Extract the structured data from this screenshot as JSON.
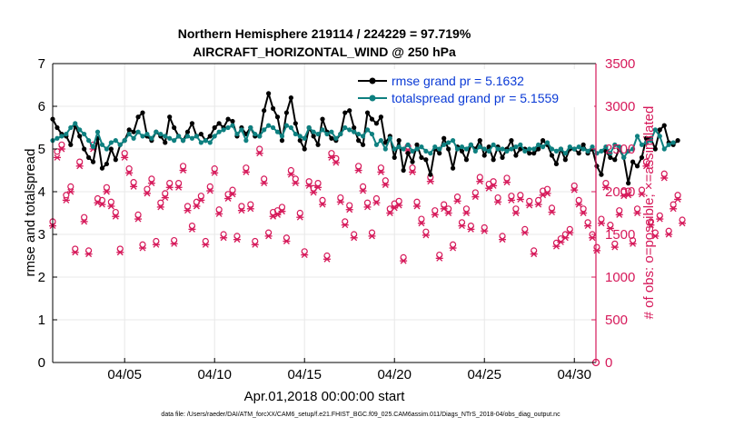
{
  "chart_data": {
    "type": "line",
    "title_line1": "Northern Hemisphere 219114 / 224229 = 97.719%",
    "title_line2": "AIRCRAFT_HORIZONTAL_WIND @ 250 hPa",
    "xlabel": "Apr.01,2018 00:00:00 start",
    "ylabel_left": "rmse and totalspread",
    "ylabel_right": "# of obs: o=possible; ×=assimilated",
    "xlim": [
      1.0,
      31.2
    ],
    "ylim_left": [
      0,
      7
    ],
    "ylim_right": [
      0,
      3500
    ],
    "x_tick_labels": [
      "04/05",
      "04/10",
      "04/15",
      "04/20",
      "04/25",
      "04/30"
    ],
    "x_tick_values": [
      5,
      10,
      15,
      20,
      25,
      30
    ],
    "y_left_ticks": [
      "0",
      "1",
      "2",
      "3",
      "4",
      "5",
      "6",
      "7"
    ],
    "y_right_ticks": [
      "0",
      "500",
      "1000",
      "1500",
      "2000",
      "2500",
      "3000",
      "3500"
    ],
    "colors": {
      "rmse": "#000000",
      "spread": "#0e8080",
      "obs": "#d6195a",
      "legend_text": "#0a3ad6",
      "grid": "#e8e8e8"
    },
    "series": [
      {
        "name": "rmse grand pr = 5.1632",
        "axis": "left",
        "values": [
          5.7,
          5.5,
          5.35,
          5.3,
          5.1,
          5.55,
          5.3,
          5.0,
          4.8,
          4.7,
          5.25,
          4.55,
          4.65,
          5.0,
          4.75,
          5.1,
          5.2,
          5.45,
          5.4,
          5.75,
          5.85,
          5.3,
          5.2,
          5.4,
          5.3,
          5.15,
          5.75,
          5.5,
          5.3,
          5.2,
          5.4,
          5.6,
          5.3,
          5.35,
          5.2,
          5.3,
          5.5,
          5.6,
          5.5,
          5.7,
          5.65,
          5.3,
          5.5,
          5.35,
          5.5,
          5.3,
          5.3,
          5.9,
          6.3,
          5.95,
          5.75,
          5.2,
          5.85,
          6.2,
          5.6,
          5.2,
          5.0,
          5.5,
          5.3,
          5.1,
          5.7,
          5.4,
          5.25,
          5.2,
          5.35,
          5.85,
          5.9,
          5.5,
          5.2,
          5.1,
          5.85,
          5.7,
          5.6,
          5.75,
          5.15,
          5.3,
          4.8,
          5.2,
          4.5,
          4.9,
          4.7,
          5.1,
          4.8,
          4.75,
          4.4,
          5.0,
          4.9,
          5.25,
          5.0,
          4.55,
          5.05,
          4.95,
          4.75,
          5.1,
          5.0,
          5.2,
          4.85,
          5.05,
          4.75,
          5.05,
          4.8,
          5.0,
          5.2,
          4.85,
          5.0,
          5.0,
          4.9,
          4.9,
          5.0,
          5.2,
          5.1,
          4.85,
          4.65,
          5.0,
          4.75,
          5.0,
          5.0,
          4.9,
          5.1,
          4.9,
          5.0,
          4.6,
          4.4,
          4.95,
          4.8,
          4.75,
          5.0,
          4.8,
          4.2,
          4.7,
          4.6,
          4.8,
          5.25,
          5.25,
          5.0,
          5.45,
          5.55,
          5.15,
          5.1,
          5.2
        ]
      },
      {
        "name": "totalspread grand pr = 5.1559",
        "axis": "left",
        "values": [
          5.2,
          5.25,
          5.3,
          5.35,
          5.5,
          5.6,
          5.45,
          5.35,
          5.2,
          5.05,
          5.4,
          5.1,
          5.0,
          5.15,
          5.2,
          5.1,
          5.2,
          5.35,
          5.25,
          5.4,
          5.3,
          5.35,
          5.25,
          5.4,
          5.35,
          5.3,
          5.25,
          5.2,
          5.3,
          5.2,
          5.3,
          5.25,
          5.3,
          5.15,
          5.2,
          5.15,
          5.3,
          5.4,
          5.45,
          5.5,
          5.55,
          5.35,
          5.45,
          5.2,
          5.5,
          5.35,
          5.3,
          5.45,
          5.55,
          5.5,
          5.4,
          5.3,
          5.55,
          5.5,
          5.35,
          5.3,
          5.25,
          5.5,
          5.4,
          5.35,
          5.45,
          5.35,
          5.4,
          5.25,
          5.35,
          5.5,
          5.45,
          5.4,
          5.35,
          5.3,
          5.45,
          5.35,
          5.1,
          5.2,
          5.0,
          5.25,
          5.0,
          5.05,
          5.0,
          5.1,
          4.95,
          5.0,
          5.05,
          4.95,
          4.9,
          5.05,
          5.0,
          5.1,
          5.15,
          5.2,
          5.0,
          5.05,
          5.0,
          5.1,
          4.95,
          5.05,
          5.0,
          4.95,
          5.1,
          5.0,
          5.0,
          4.95,
          5.0,
          5.05,
          5.1,
          4.95,
          5.0,
          5.0,
          5.1,
          5.05,
          5.15,
          5.0,
          4.95,
          5.0,
          4.9,
          5.05,
          5.0,
          5.05,
          5.0,
          4.95,
          5.05,
          4.9,
          4.95,
          5.05,
          4.9,
          5.1,
          5.05,
          4.8,
          4.95,
          5.0,
          5.3,
          5.1,
          5.15,
          5.2,
          5.45,
          5.3,
          5.0,
          5.1,
          5.15
        ]
      }
    ],
    "obs_possible": {
      "x_start": 1.0,
      "x_step": 0.25,
      "axis": "right",
      "marker": "o",
      "values": [
        1650,
        2470,
        2550,
        1960,
        2060,
        1330,
        2350,
        1700,
        1310,
        2550,
        1920,
        1900,
        2050,
        1880,
        1760,
        1330,
        2450,
        2270,
        2110,
        1730,
        1380,
        2030,
        2150,
        1420,
        1870,
        1980,
        2100,
        1430,
        2100,
        2300,
        1830,
        1600,
        1880,
        1950,
        1420,
        2060,
        2270,
        1790,
        1500,
        1970,
        2020,
        1480,
        1830,
        2280,
        1850,
        1420,
        2500,
        2150,
        1520,
        1760,
        1780,
        1820,
        1460,
        2250,
        2150,
        1750,
        1300,
        2120,
        2040,
        2100,
        1900,
        1250,
        2450,
        2390,
        1930,
        1650,
        1840,
        1500,
        2300,
        2060,
        1870,
        1520,
        1920,
        2280,
        2130,
        1800,
        1860,
        1890,
        1230,
        2530,
        2280,
        1880,
        1680,
        1530,
        2170,
        1780,
        1260,
        1850,
        1800,
        1380,
        1940,
        1640,
        1800,
        1600,
        1990,
        2170,
        1580,
        2090,
        2120,
        1930,
        1480,
        2160,
        1950,
        1800,
        1960,
        1560,
        1890,
        1310,
        1900,
        2010,
        2030,
        1810,
        1400,
        1450,
        1500,
        1560,
        2070,
        1900,
        1800,
        1640,
        1500,
        1350,
        1680,
        2100,
        1610,
        1390,
        1780,
        2000,
        2010,
        1430,
        1800,
        2020,
        2350,
        1650,
        1520,
        1720,
        2210,
        1540,
        1850,
        1960,
        1670
      ]
    },
    "obs_assimilated": {
      "x_start": 1.0,
      "x_step": 0.25,
      "axis": "right",
      "marker": "x",
      "values": [
        1600,
        2400,
        2500,
        1900,
        2000,
        1290,
        2300,
        1650,
        1270,
        2500,
        1870,
        1850,
        2000,
        1830,
        1710,
        1290,
        2400,
        2220,
        2060,
        1680,
        1340,
        1980,
        2100,
        1380,
        1820,
        1930,
        2050,
        1390,
        2050,
        2250,
        1780,
        1560,
        1830,
        1900,
        1380,
        2010,
        2220,
        1740,
        1460,
        1920,
        1970,
        1440,
        1780,
        2230,
        1800,
        1380,
        2450,
        2100,
        1480,
        1710,
        1730,
        1770,
        1420,
        2200,
        2100,
        1700,
        1260,
        2070,
        1990,
        2050,
        1850,
        1210,
        2400,
        2340,
        1880,
        1610,
        1790,
        1460,
        2250,
        2010,
        1820,
        1480,
        1870,
        2230,
        2080,
        1750,
        1810,
        1840,
        1190,
        2480,
        2230,
        1830,
        1630,
        1490,
        2120,
        1730,
        1220,
        1800,
        1750,
        1340,
        1890,
        1600,
        1750,
        1560,
        1940,
        2120,
        1540,
        2040,
        2070,
        1880,
        1440,
        2110,
        1900,
        1750,
        1910,
        1520,
        1840,
        1270,
        1850,
        1960,
        1980,
        1760,
        1360,
        1410,
        1460,
        1520,
        2020,
        1850,
        1750,
        1600,
        1460,
        1310,
        1630,
        2050,
        1570,
        1350,
        1730,
        1950,
        1960,
        1390,
        1750,
        1970,
        2300,
        1610,
        1480,
        1680,
        2160,
        1500,
        1800,
        1910,
        1630
      ]
    },
    "footer": "data file: /Users/raeder/DAI/ATM_forcXX/CAM6_setup/f.e21.FHIST_BGC.f09_025.CAM6assim.011/Diags_NTrS_2018-04/obs_diag_output.nc"
  }
}
